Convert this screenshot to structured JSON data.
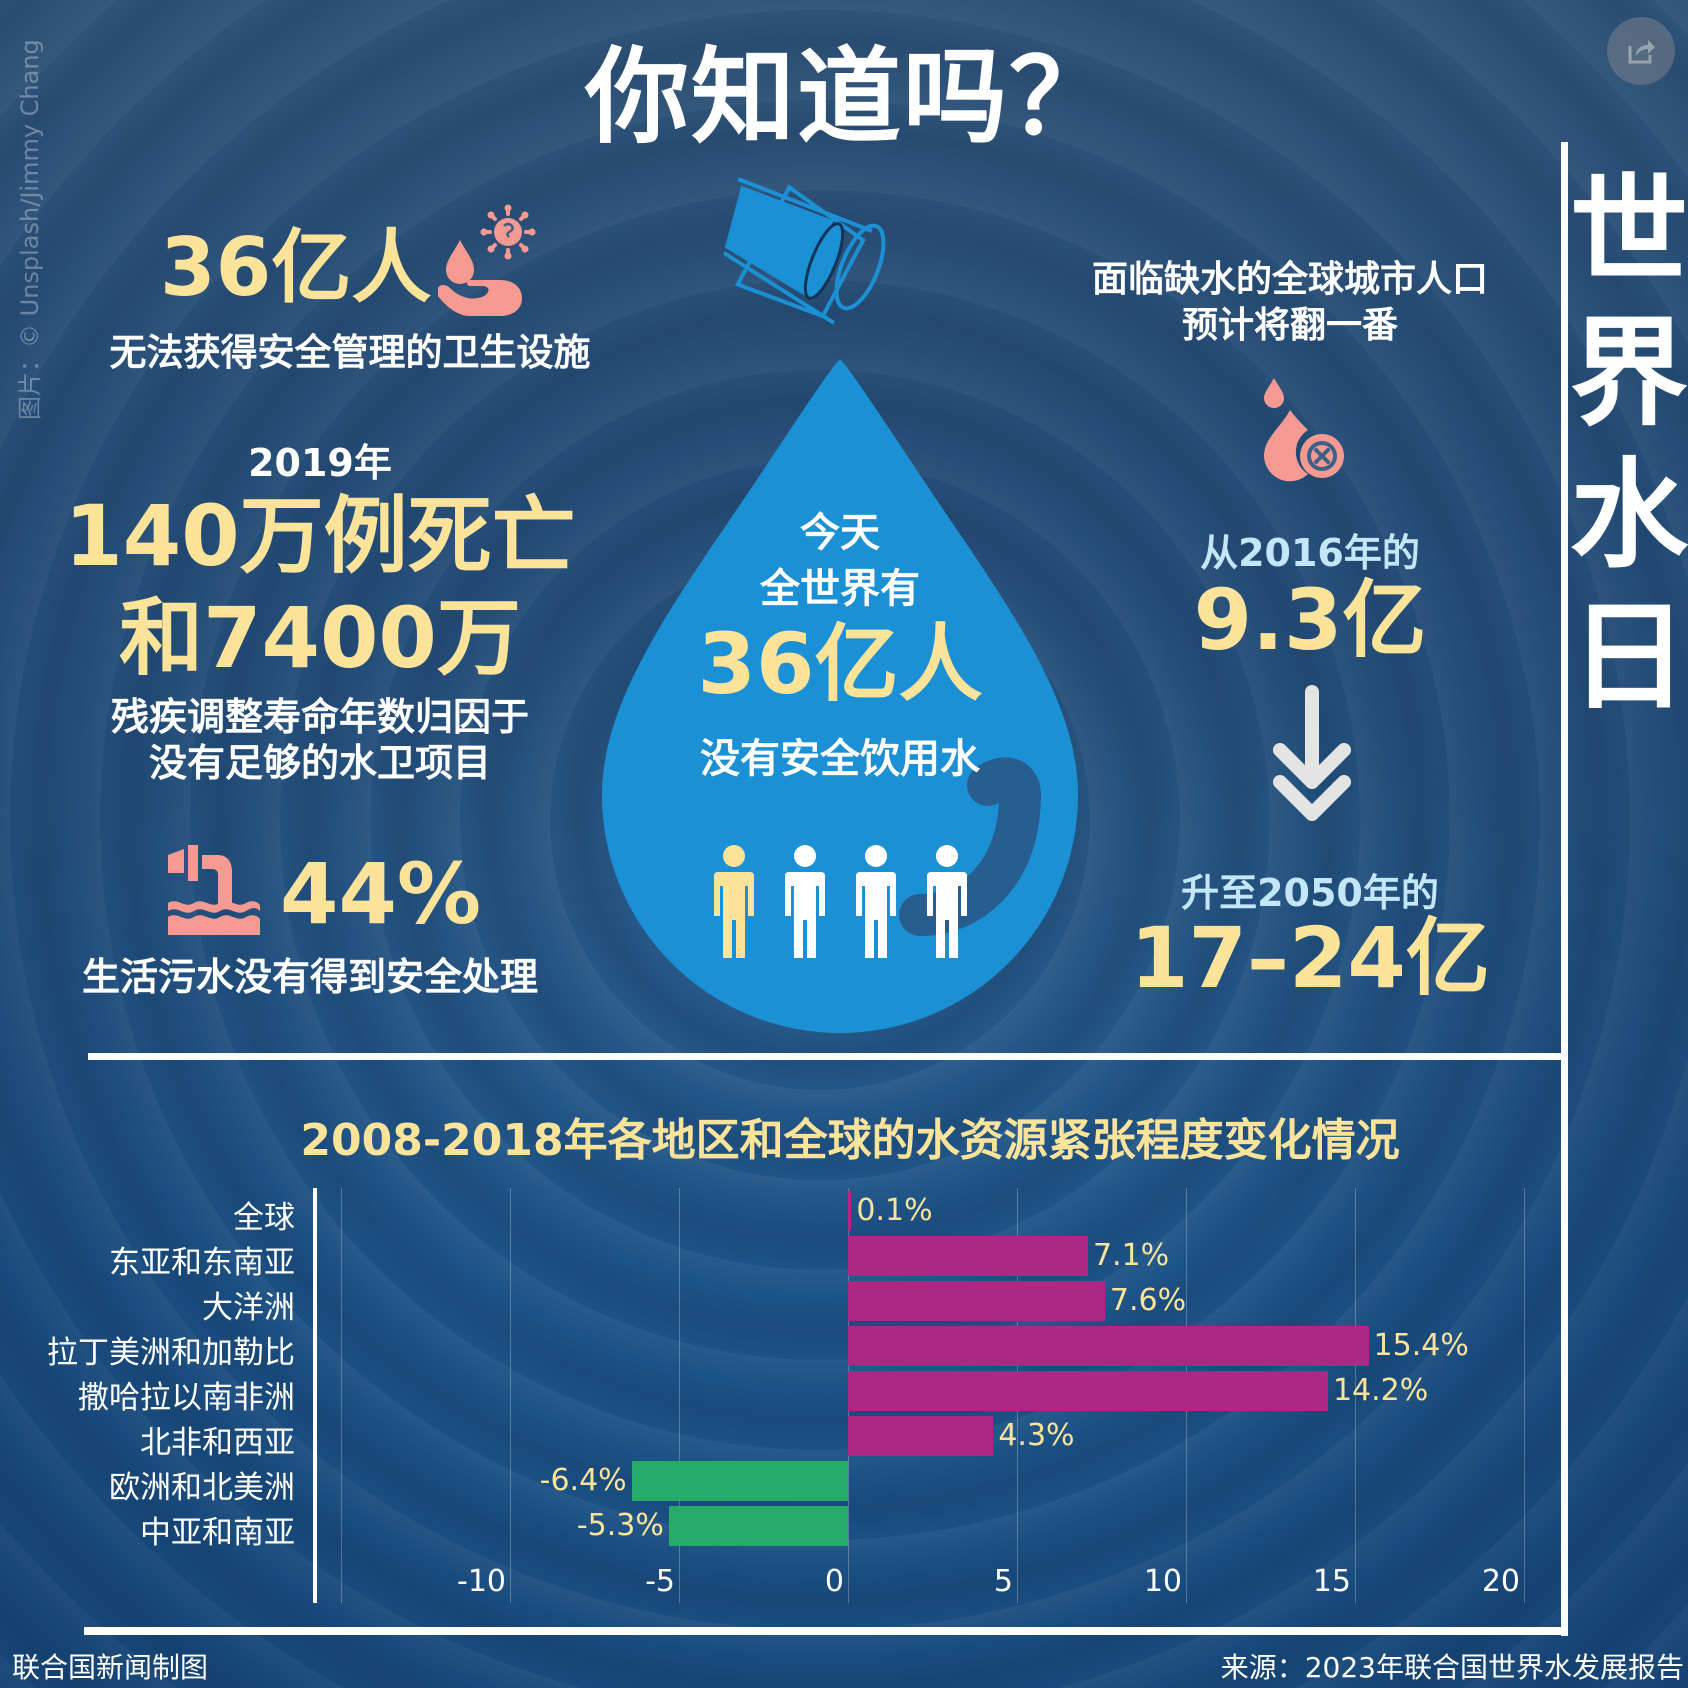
{
  "header": {
    "title": "你知道吗？",
    "side_title": [
      "世",
      "界",
      "水",
      "日"
    ],
    "photo_credit": "图片：© Unsplash/Jimmy Chang",
    "share_icon": "share-icon"
  },
  "left_stats": {
    "sanitation": {
      "value": "36亿人",
      "label": "无法获得安全管理的卫生设施",
      "icon": "hand-water-virus-icon"
    },
    "deaths": {
      "year": "2019年",
      "value_line1": "140万例死亡",
      "value_line2": "和7400万",
      "label_line1": "残疾调整寿命年数归因于",
      "label_line2": "没有足够的水卫项目"
    },
    "wastewater": {
      "value": "44%",
      "label": "生活污水没有得到安全处理",
      "icon": "sewage-pipe-icon"
    }
  },
  "center_drop": {
    "line1": "今天",
    "line2": "全世界有",
    "value": "36亿人",
    "label": "没有安全饮用水",
    "people_icons": 4,
    "highlighted_people": 1,
    "icon": "tipped-glass-icon"
  },
  "right_stats": {
    "intro_line1": "面临缺水的全球城市人口",
    "intro_line2": "预计将翻一番",
    "icon": "water-drop-cancel-icon",
    "from_label": "从2016年的",
    "from_value": "9.3亿",
    "arrow_icon": "double-arrow-down-icon",
    "to_label": "升至2050年的",
    "to_value": "17–24亿"
  },
  "chart_data": {
    "type": "bar",
    "orientation": "horizontal",
    "title": "2008-2018年各地区和全球的水资源紧张程度变化情况",
    "categories": [
      "全球",
      "东亚和东南亚",
      "大洋洲",
      "拉丁美洲和加勒比",
      "撒哈拉以南非洲",
      "北非和西亚",
      "欧洲和北美洲",
      "中亚和南亚"
    ],
    "values": [
      0.1,
      7.1,
      7.6,
      15.4,
      14.2,
      4.3,
      -6.4,
      -5.3
    ],
    "value_labels": [
      "0.1%",
      "7.1%",
      "7.6%",
      "15.4%",
      "14.2%",
      "4.3%",
      "-6.4%",
      "-5.3%"
    ],
    "xlabel": "",
    "ylabel": "",
    "xlim": [
      -15,
      20
    ],
    "xticks": [
      -10,
      -5,
      0,
      5,
      10,
      15,
      20
    ],
    "xtick_labels": [
      "-10",
      "-5",
      "0",
      "5",
      "10",
      "15",
      "20"
    ],
    "grid": true,
    "positive_color": "#ad2785",
    "negative_color": "#27ab6b",
    "label_color": "#fbe39a"
  },
  "footer": {
    "credit": "联合国新闻制图",
    "source": "来源：2023年联合国世界水发展报告"
  },
  "colors": {
    "accent_yellow": "#fbe39a",
    "drop_blue": "#1b90d4",
    "icon_pink": "#f59a92",
    "light_blue_text": "#c4e6fb"
  }
}
